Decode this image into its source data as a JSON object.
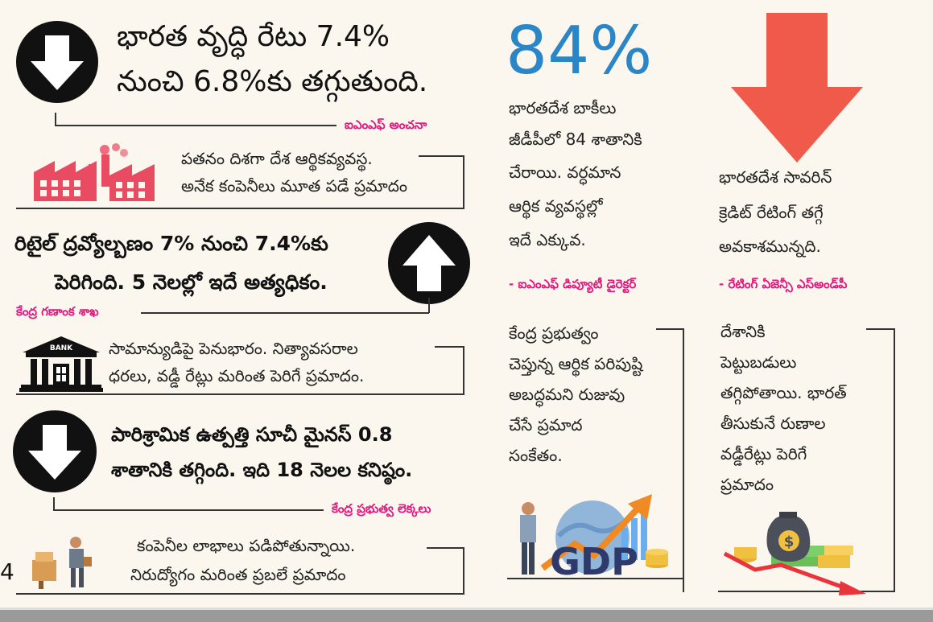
{
  "page_number": "4",
  "left": {
    "block1": {
      "headline_lines": [
        "భారత వృద్ధి రేటు 7.4%",
        "నుంచి 6.8%కు తగ్గుతుంది."
      ],
      "source": "ఐఎంఎఫ్ అంచనా",
      "note_lines": [
        "పతనం దిశగా దేశ ఆర్థికవ్యవస్థ.",
        "అనేక కంపెనీలు మూత పడే ప్రమాదం"
      ]
    },
    "block2": {
      "headline_lines": [
        "రిటైల్ ద్రవ్యోల్బణం 7% నుంచి 7.4%కు",
        "పెరిగింది. 5 నెలల్లో ఇదే అత్యధికం."
      ],
      "source": "కేంద్ర గణాంక శాఖ",
      "bank_label": "BANK",
      "note_lines": [
        "సామాన్యుడిపై పెనుభారం. నిత్యావసరాల",
        "ధరలు, వడ్డీ రేట్లు మరింత పెరిగే ప్రమాదం."
      ]
    },
    "block3": {
      "headline_lines": [
        "పారిశ్రామిక ఉత్పత్తి సూచీ మైనస్ 0.8",
        "శాతానికి తగ్గింది. ఇది 18 నెలల కనిష్ఠం."
      ],
      "source": "కేంద్ర ప్రభుత్వ లెక్కలు",
      "note_lines": [
        "కంపెనీల లాభాలు పడిపోతున్నాయి.",
        "నిరుద్యోగం మరింత ప్రబలే ప్రమాదం"
      ]
    }
  },
  "middle": {
    "big_percent": "84%",
    "desc_lines": [
      "భారతదేశ బాకీలు",
      "జీడీపీలో 84 శాతానికి",
      "చేరాయి. వర్ధమాన",
      "ఆర్థిక వ్యవస్థల్లో",
      "ఇదే ఎక్కువ."
    ],
    "source": "- ఐఎంఎఫ్ డిప్యూటీ డైరెక్టర్",
    "note_lines": [
      "కేంద్ర ప్రభుత్వం",
      "చెప్తున్న ఆర్థిక పరిపుష్టి",
      "అబద్ధమని రుజువు",
      "చేసే ప్రమాద",
      "సంకేతం."
    ],
    "gdp_label": "GDP"
  },
  "right": {
    "desc_lines": [
      "భారతదేశ సావరిన్",
      "క్రెడిట్ రేటింగ్ తగ్గే",
      "అవకాశమున్నది."
    ],
    "source": "- రేటింగ్ ఏజెన్సీ ఎస్అండ్‌పీ",
    "note_lines": [
      "దేశానికి",
      "పెట్టుబడులు",
      "తగ్గిపోతాయి. భారత్",
      "తీసుకునే రుణాల",
      "వడ్డీరేట్లు పెరిగే",
      "ప్రమాదం"
    ],
    "money_label": "$"
  },
  "colors": {
    "pink": "#e5177f",
    "blue": "#2b86c8",
    "red_arrow": "#f05a4a",
    "factory": "#e94b63"
  }
}
